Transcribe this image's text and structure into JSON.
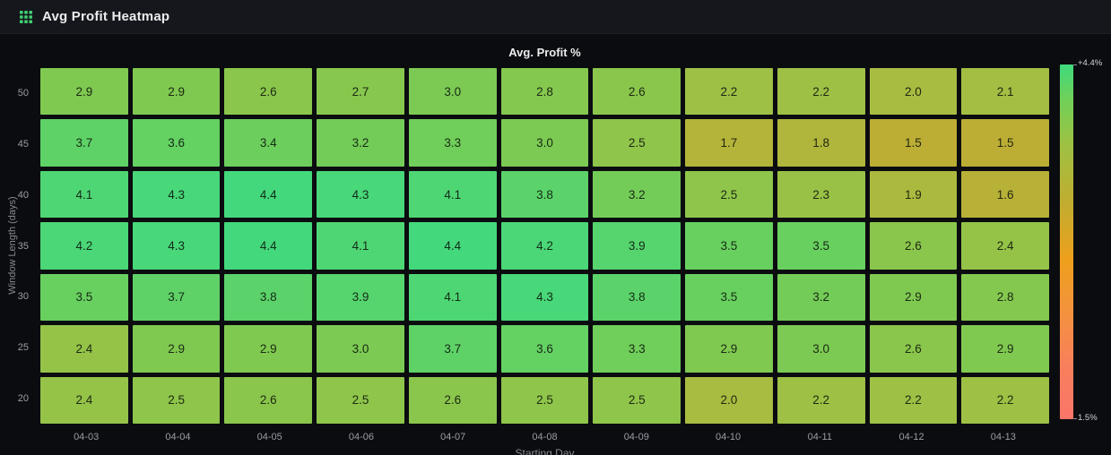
{
  "panel": {
    "title": "Avg Profit Heatmap",
    "icon": "table-grid-icon"
  },
  "chart_data": {
    "type": "heatmap",
    "title": "Avg. Profit %",
    "xlabel": "Starting Day",
    "ylabel": "Window Length (days)",
    "x_categories": [
      "04-03",
      "04-04",
      "04-05",
      "04-06",
      "04-07",
      "04-08",
      "04-09",
      "04-10",
      "04-11",
      "04-12",
      "04-13"
    ],
    "y_categories": [
      "50",
      "45",
      "40",
      "35",
      "30",
      "25",
      "20"
    ],
    "rows": [
      [
        2.9,
        2.9,
        2.6,
        2.7,
        3.0,
        2.8,
        2.6,
        2.2,
        2.2,
        2.0,
        2.1
      ],
      [
        3.7,
        3.6,
        3.4,
        3.2,
        3.3,
        3.0,
        2.5,
        1.7,
        1.8,
        1.5,
        1.5
      ],
      [
        4.1,
        4.3,
        4.4,
        4.3,
        4.1,
        3.8,
        3.2,
        2.5,
        2.3,
        1.9,
        1.6
      ],
      [
        4.2,
        4.3,
        4.4,
        4.1,
        4.4,
        4.2,
        3.9,
        3.5,
        3.5,
        2.6,
        2.4
      ],
      [
        3.5,
        3.7,
        3.8,
        3.9,
        4.1,
        4.3,
        3.8,
        3.5,
        3.2,
        2.9,
        2.8
      ],
      [
        2.4,
        2.9,
        2.9,
        3.0,
        3.7,
        3.6,
        3.3,
        2.9,
        3.0,
        2.6,
        2.9
      ],
      [
        2.4,
        2.5,
        2.6,
        2.5,
        2.6,
        2.5,
        2.5,
        2.0,
        2.2,
        2.2,
        2.2
      ]
    ],
    "value_decimals": 1,
    "colorbar": {
      "max_label": "+4.4%",
      "min_label": "1.5%",
      "min": 1.5,
      "max": 4.4,
      "position": "right"
    },
    "value_range": [
      1.5,
      4.4
    ],
    "grid": false,
    "legend": "colorbar-right"
  },
  "colors": {
    "page_background": "#0b0c10",
    "header_background": "#15171d",
    "panel_icon_green": "#3fd073",
    "title_text": "#eceded",
    "tick_text": "#9b9da5",
    "cell_text": "#0d140d",
    "cell_color_stops": [
      [
        1.5,
        "#bcae35"
      ],
      [
        2.0,
        "#a8bc41"
      ],
      [
        2.5,
        "#8fc54a"
      ],
      [
        3.0,
        "#7cca53"
      ],
      [
        3.5,
        "#68d05f"
      ],
      [
        4.0,
        "#52d572"
      ],
      [
        4.4,
        "#44d87c"
      ]
    ],
    "colorbar_gradient_top_to_bottom": [
      [
        "0%",
        "#3eda7e"
      ],
      [
        "10%",
        "#71d058"
      ],
      [
        "22%",
        "#9cc243"
      ],
      [
        "38%",
        "#bfae31"
      ],
      [
        "55%",
        "#eda01c"
      ],
      [
        "70%",
        "#f4923e"
      ],
      [
        "85%",
        "#f87f5c"
      ],
      [
        "100%",
        "#fa7569"
      ]
    ]
  }
}
